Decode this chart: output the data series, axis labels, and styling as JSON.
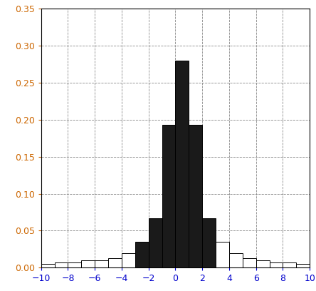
{
  "bin_edges": [
    -10,
    -9,
    -8,
    -7,
    -6,
    -5,
    -4,
    -3,
    -2,
    -1,
    0,
    1,
    2,
    3,
    4,
    5,
    6,
    7,
    8,
    9,
    10
  ],
  "heights": [
    0.005,
    0.007,
    0.007,
    0.01,
    0.01,
    0.013,
    0.02,
    0.035,
    0.067,
    0.193,
    0.28,
    0.193,
    0.067,
    0.035,
    0.02,
    0.013,
    0.01,
    0.007,
    0.007,
    0.005
  ],
  "black_bins_left": [
    -3,
    -2,
    -1,
    0,
    1,
    2
  ],
  "bar_color_black": "#1a1a1a",
  "bar_color_white": "#ffffff",
  "bar_edgecolor": "#000000",
  "ylim": [
    0,
    0.35
  ],
  "xlim": [
    -10,
    10
  ],
  "yticks": [
    0,
    0.05,
    0.1,
    0.15,
    0.2,
    0.25,
    0.3,
    0.35
  ],
  "xticks": [
    -10,
    -8,
    -6,
    -4,
    -2,
    0,
    2,
    4,
    6,
    8,
    10
  ],
  "grid_color": "#888888",
  "ytick_color": "#cc6600",
  "xtick_color": "#0000cc",
  "background_color": "#ffffff",
  "figsize": [
    4.44,
    4.08
  ],
  "dpi": 100,
  "linewidth_edge": 0.7
}
